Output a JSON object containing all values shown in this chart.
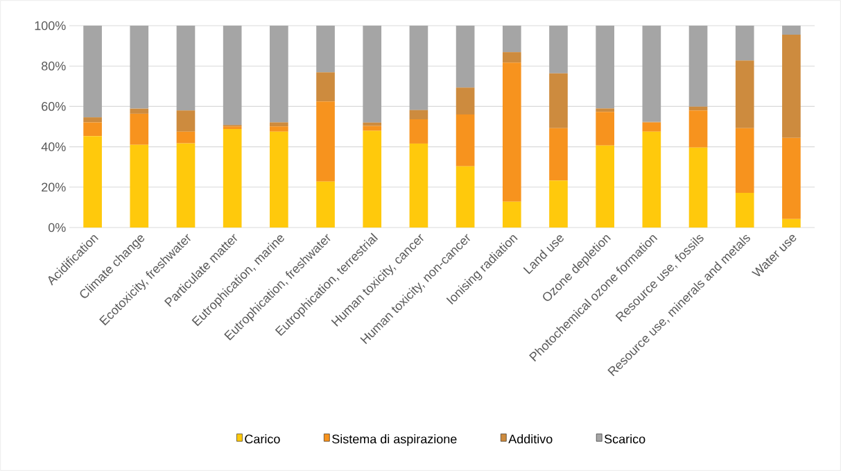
{
  "chart_data": {
    "type": "bar",
    "stacked": true,
    "categories": [
      "Acidification",
      "Climate change",
      "Ecotoxicity, freshwater",
      "Particulate matter",
      "Eutrophication, marine",
      "Eutrophication, freshwater",
      "Eutrophication, terrestrial",
      "Human toxicity, cancer",
      "Human toxicity, non-cancer",
      "Ionising radiation",
      "Land use",
      "Ozone depletion",
      "Photochemical ozone formation",
      "Resource use, fossils",
      "Resource use, minerals and metals",
      "Water use"
    ],
    "series": [
      {
        "name": "Carico",
        "color": "#ffc90c",
        "values": [
          45.3,
          41.0,
          41.7,
          48.8,
          47.5,
          22.8,
          47.9,
          41.6,
          30.3,
          12.8,
          23.3,
          40.6,
          47.5,
          39.6,
          17.2,
          4.2
        ]
      },
      {
        "name": "Sistema di aspirazione",
        "color": "#f7931e",
        "values": [
          6.8,
          15.4,
          5.8,
          1.3,
          2.6,
          39.7,
          2.4,
          12.0,
          25.7,
          68.9,
          25.9,
          16.7,
          4.5,
          18.4,
          32.0,
          40.2
        ]
      },
      {
        "name": "Additivo",
        "color": "#cd8b3e",
        "values": [
          2.5,
          2.5,
          10.5,
          0.7,
          2.0,
          14.4,
          1.7,
          4.6,
          13.3,
          5.2,
          27.2,
          1.7,
          0.3,
          1.9,
          33.5,
          51.1
        ]
      },
      {
        "name": "Scarico",
        "color": "#a5a5a5",
        "values": [
          45.4,
          41.1,
          42.0,
          49.2,
          47.9,
          23.1,
          48.0,
          41.8,
          30.7,
          13.1,
          23.6,
          41.0,
          47.7,
          40.1,
          17.3,
          4.5
        ]
      }
    ],
    "ylim": [
      0,
      100
    ],
    "yticks": [
      {
        "value": 0,
        "label": "0%"
      },
      {
        "value": 20,
        "label": "20%"
      },
      {
        "value": 40,
        "label": "40%"
      },
      {
        "value": 60,
        "label": "60%"
      },
      {
        "value": 80,
        "label": "80%"
      },
      {
        "value": 100,
        "label": "100%"
      }
    ],
    "grid": "y",
    "legend": "bottom"
  }
}
